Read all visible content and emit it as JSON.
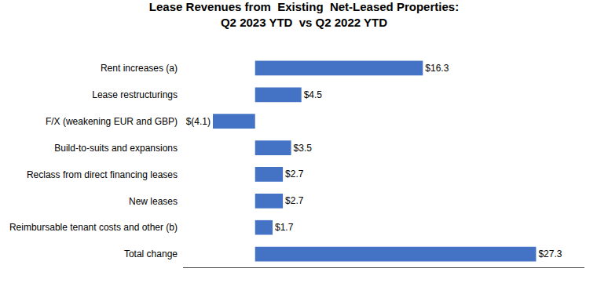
{
  "chart_data": {
    "type": "bar",
    "orientation": "horizontal",
    "title": "Lease Revenues from  Existing  Net-Leased Properties:\nQ2 2023 YTD  vs Q2 2022 YTD",
    "categories": [
      "Rent increases (a)",
      "Lease restructurings",
      "F/X (weakening EUR and GBP)",
      "Build-to-suits and expansions",
      "Reclass from direct financing leases",
      "New leases",
      "Reimbursable tenant costs and other (b)",
      "Total change"
    ],
    "values": [
      16.3,
      4.5,
      -4.1,
      3.5,
      2.7,
      2.7,
      1.7,
      27.3
    ],
    "value_labels": [
      "$16.3",
      "$4.5",
      "$(4.1)",
      "$3.5",
      "$2.7",
      "$2.7",
      "$1.7",
      "$27.3"
    ],
    "data_labels": true,
    "color": "#4472C4",
    "xlim": [
      -7,
      32
    ],
    "tick_labels": "y",
    "grid": false
  }
}
